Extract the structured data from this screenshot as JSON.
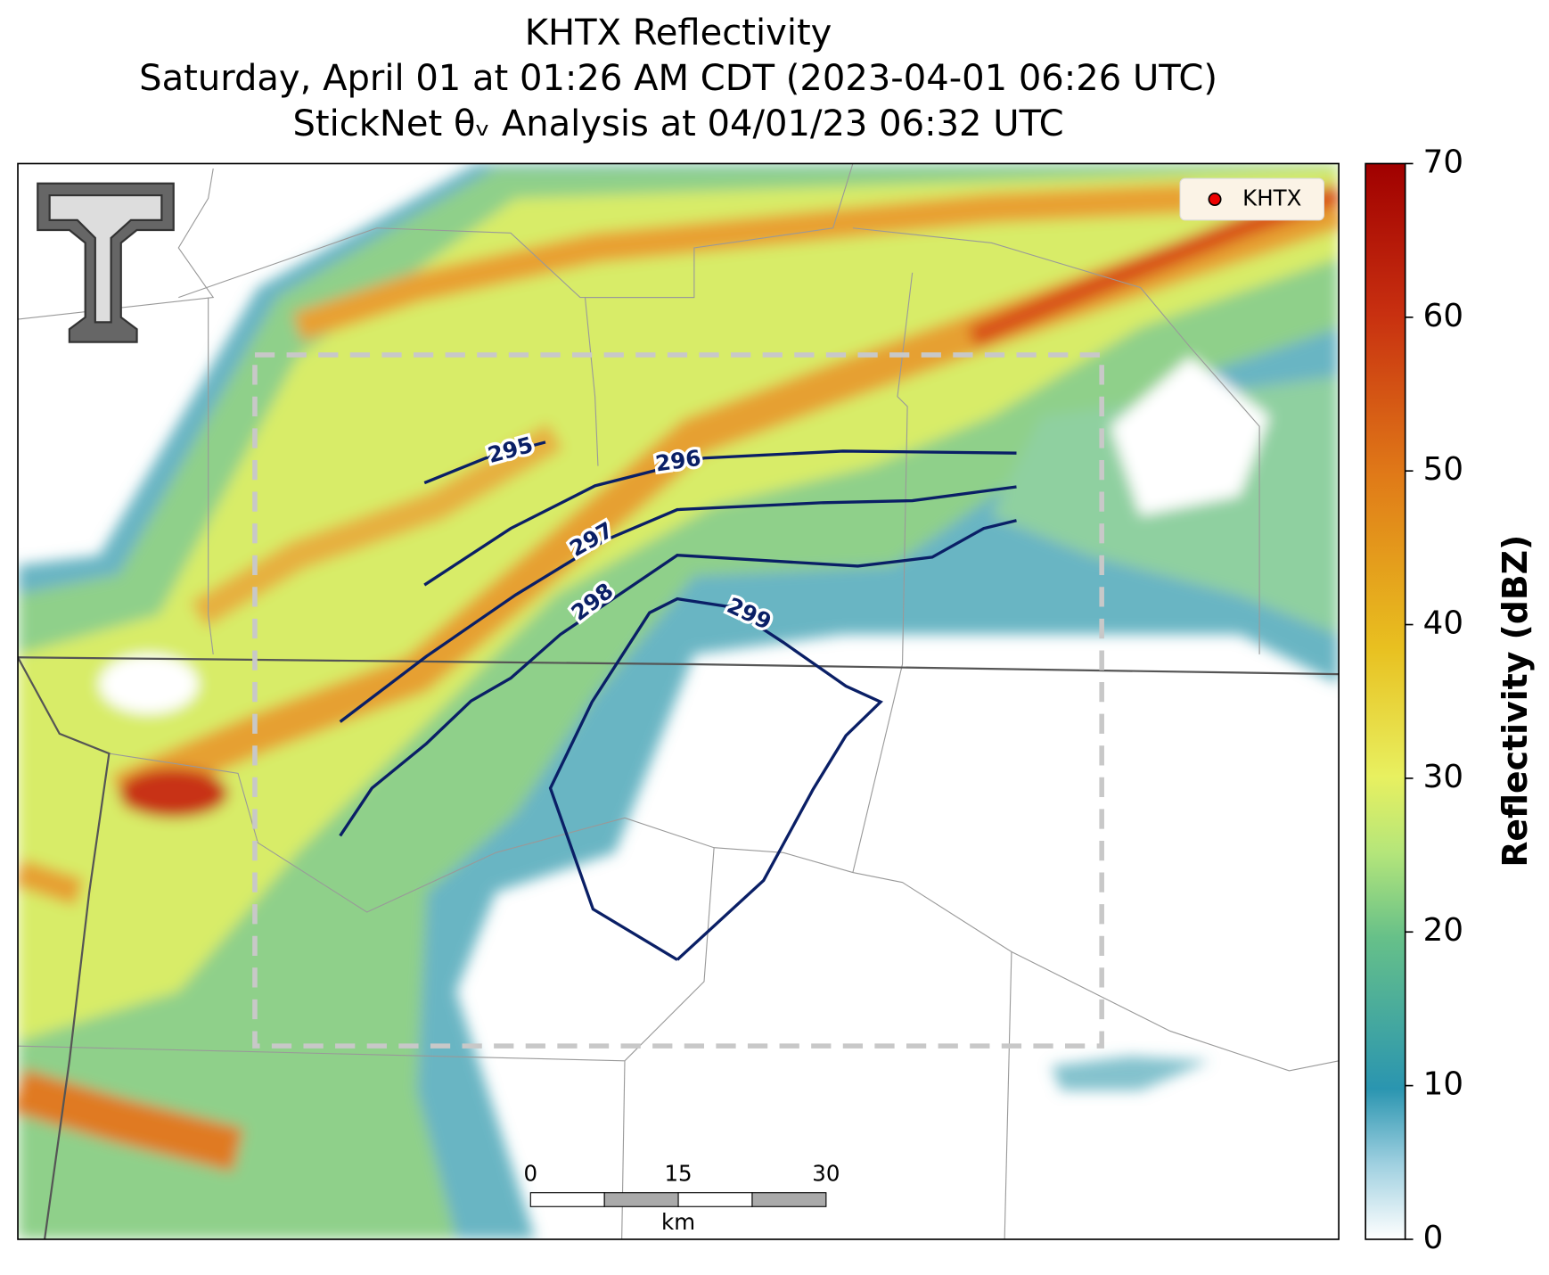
{
  "title": [
    "KHTX Reflectivity",
    "Saturday, April 01 at 01:26 AM CDT (2023-04-01 06:26 UTC)",
    "StickNet θᵥ Analysis at 04/01/23 06:32 UTC"
  ],
  "legend": "KHTX",
  "colorbar": {
    "label": "Reflectivity (dBZ)",
    "lim": [
      0,
      70
    ],
    "ticks": [
      0,
      10,
      20,
      30,
      40,
      50,
      60,
      70
    ]
  },
  "contour_labels": [
    295,
    296,
    297,
    298,
    299
  ],
  "scale_bar": {
    "ticks": [
      0,
      15,
      30
    ],
    "unit": "km"
  }
}
